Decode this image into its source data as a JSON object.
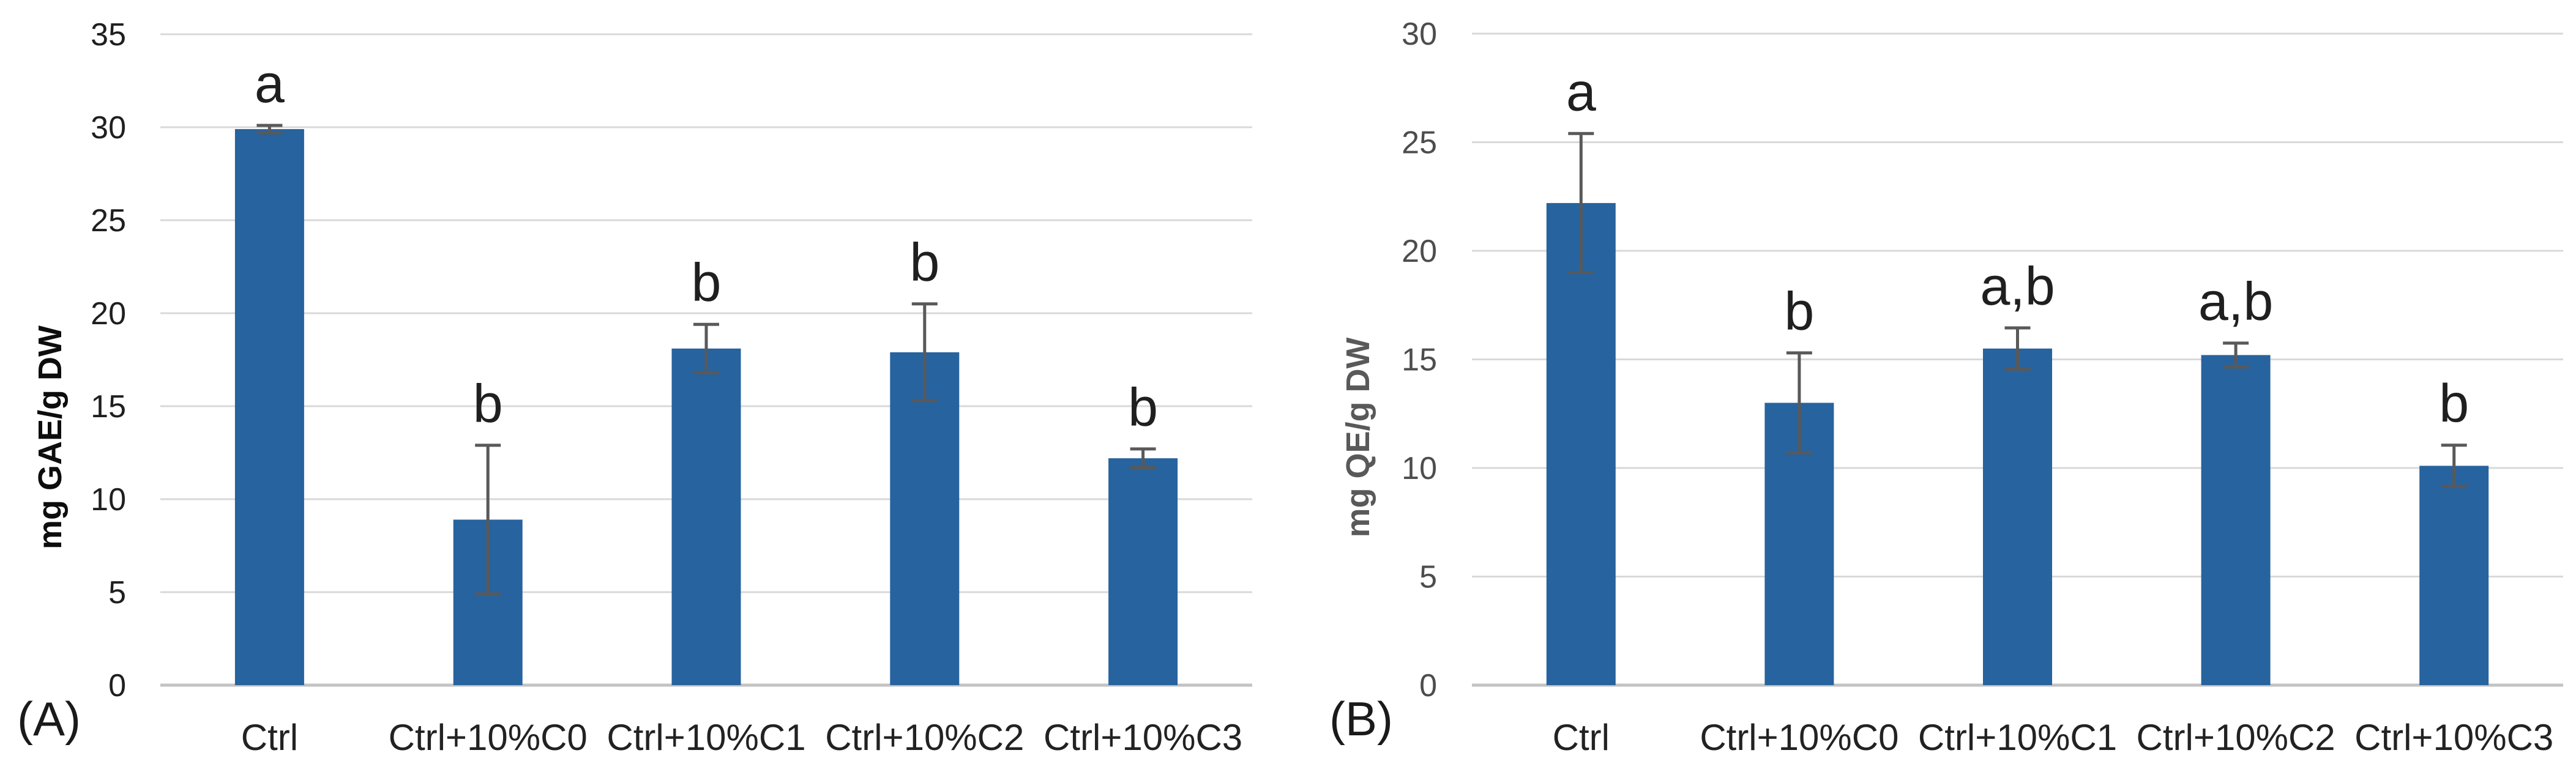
{
  "figure": {
    "description": "Two-panel bar chart figure with significance letters and error bars",
    "panel_labels": [
      "(A)",
      "(B)"
    ]
  },
  "colors": {
    "bar": "#27639E",
    "gridline": "#D9D9D9",
    "axis_line": "#C3C3C3",
    "error_bar": "#595959",
    "panel_label_text": "#1A1A1A",
    "chart_a_text": "#1F1F1F",
    "chart_b_text": "#4D4D4D",
    "chart_b_ylabel": "#595959",
    "category_text": "#222222",
    "letter_text": "#1F1F1F"
  },
  "chart_data": [
    {
      "type": "bar",
      "panel_label": "(A)",
      "title": "",
      "xlabel": "",
      "ylabel": "mg GAE/g DW",
      "ylim": [
        0,
        35
      ],
      "yticks": [
        0,
        5,
        10,
        15,
        20,
        25,
        30,
        35
      ],
      "grid": true,
      "legend": "none",
      "categories": [
        "Ctrl",
        "Ctrl+10%C0",
        "Ctrl+10%C1",
        "Ctrl+10%C2",
        "Ctrl+10%C3"
      ],
      "values": [
        29.9,
        8.9,
        18.1,
        17.9,
        12.2
      ],
      "error_bars": [
        0.2,
        4.0,
        1.3,
        2.6,
        0.5
      ],
      "significance_letters": [
        "a",
        "b",
        "b",
        "b",
        "b"
      ]
    },
    {
      "type": "bar",
      "panel_label": "(B)",
      "title": "",
      "xlabel": "",
      "ylabel": "mg QE/g DW",
      "ylim": [
        0,
        30
      ],
      "yticks": [
        0,
        5,
        10,
        15,
        20,
        25,
        30
      ],
      "grid": true,
      "legend": "none",
      "categories": [
        "Ctrl",
        "Ctrl+10%C0",
        "Ctrl+10%C1",
        "Ctrl+10%C2",
        "Ctrl+10%C3"
      ],
      "values": [
        22.2,
        13.0,
        15.5,
        15.2,
        10.1
      ],
      "error_bars": [
        3.2,
        2.3,
        0.95,
        0.55,
        0.95
      ],
      "significance_letters": [
        "a",
        "b",
        "a,b",
        "a,b",
        "b"
      ]
    }
  ]
}
